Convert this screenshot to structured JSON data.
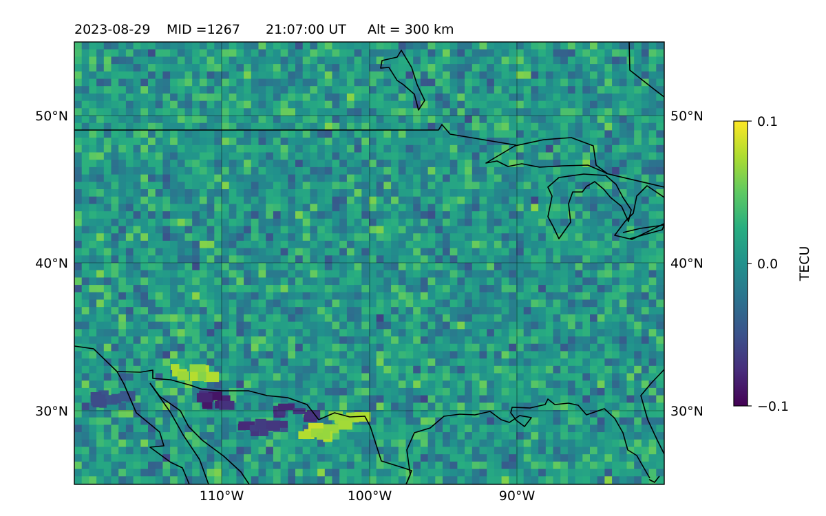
{
  "header": {
    "date": "2023-08-29",
    "mid": "MID =1267",
    "time": "21:07:00  UT",
    "alt": "Alt = 300 km"
  },
  "map": {
    "projection": "PlateCarree",
    "lon_range": [
      -120,
      -80
    ],
    "lat_range": [
      25,
      55
    ],
    "gridlines": true,
    "lat_labels": [
      "50°N",
      "40°N",
      "30°N"
    ],
    "lon_labels": [
      "110°W",
      "100°W",
      "90°W"
    ],
    "colormap": "viridis",
    "highlights": [
      {
        "desc": "bright",
        "lon": -103.5,
        "lat": 28.5,
        "value": 0.09
      },
      {
        "desc": "bright",
        "lon": -112,
        "lat": 32.5,
        "value": 0.08
      },
      {
        "desc": "bright",
        "lon": -101.3,
        "lat": 29.4,
        "value": 0.08
      },
      {
        "desc": "dark",
        "lon": -110.5,
        "lat": 30.7,
        "value": -0.09
      },
      {
        "desc": "dark",
        "lon": -107.4,
        "lat": 28.8,
        "value": -0.08
      },
      {
        "desc": "dark",
        "lon": -105,
        "lat": 29.8,
        "value": -0.08
      },
      {
        "desc": "dark",
        "lon": -117.5,
        "lat": 30.8,
        "value": -0.06
      }
    ]
  },
  "colorbar": {
    "label": "TECU",
    "ticks": [
      "0.1",
      "0.0",
      "−0.1"
    ],
    "min": -0.1,
    "max": 0.1
  }
}
